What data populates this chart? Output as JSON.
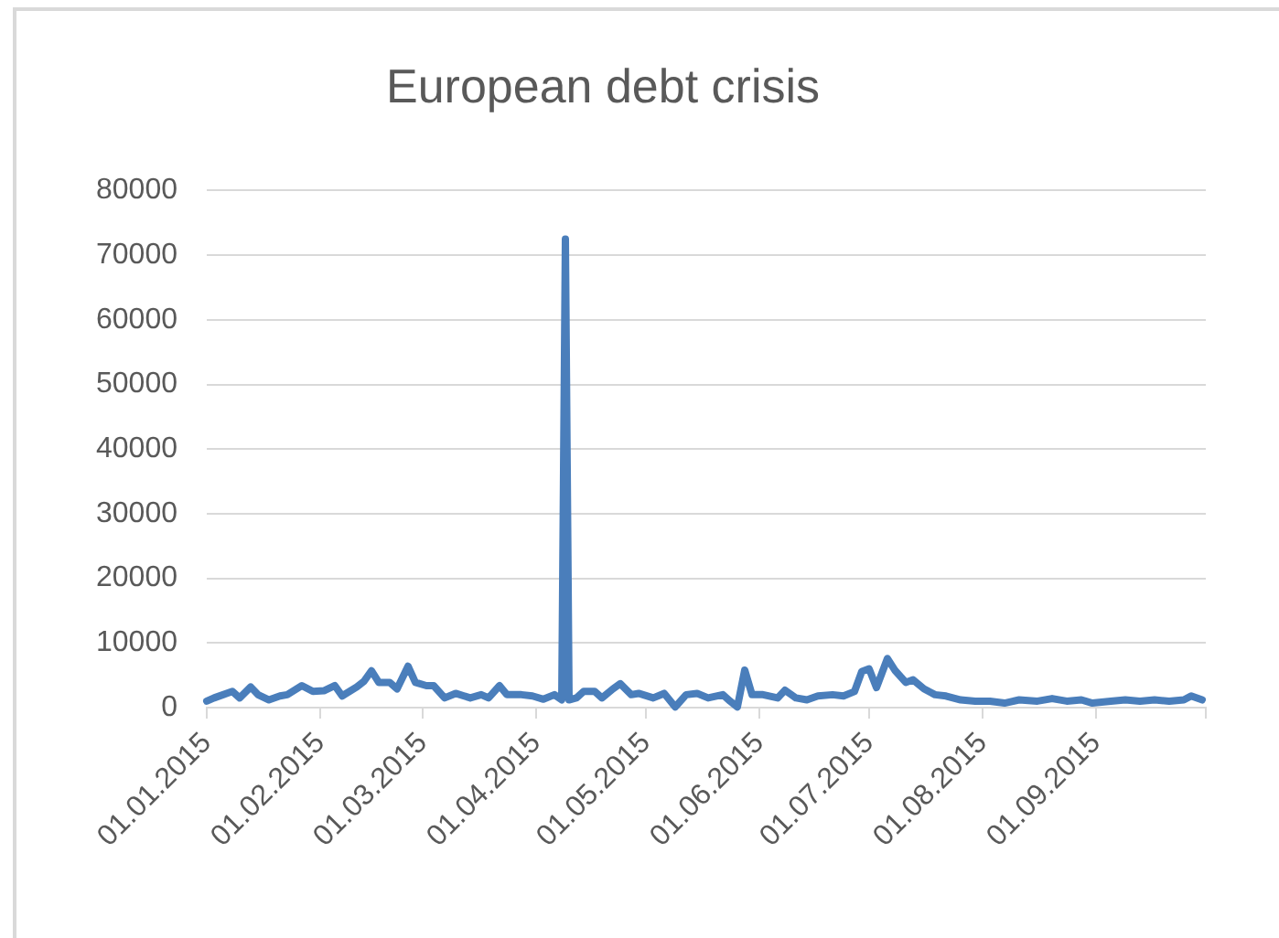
{
  "chart_data": {
    "type": "line",
    "title": "European debt crisis",
    "x": [
      "2015-01-01",
      "2015-01-03",
      "2015-01-08",
      "2015-01-10",
      "2015-01-13",
      "2015-01-15",
      "2015-01-18",
      "2015-01-21",
      "2015-01-23",
      "2015-01-27",
      "2015-01-30",
      "2015-02-02",
      "2015-02-05",
      "2015-02-07",
      "2015-02-11",
      "2015-02-13",
      "2015-02-15",
      "2015-02-17",
      "2015-02-20",
      "2015-02-22",
      "2015-02-25",
      "2015-02-27",
      "2015-03-02",
      "2015-03-04",
      "2015-03-07",
      "2015-03-10",
      "2015-03-14",
      "2015-03-17",
      "2015-03-19",
      "2015-03-22",
      "2015-03-24",
      "2015-03-28",
      "2015-03-31",
      "2015-04-03",
      "2015-04-06",
      "2015-04-08",
      "2015-04-09",
      "2015-04-10",
      "2015-04-12",
      "2015-04-14",
      "2015-04-17",
      "2015-04-19",
      "2015-04-22",
      "2015-04-24",
      "2015-04-27",
      "2015-04-29",
      "2015-05-03",
      "2015-05-06",
      "2015-05-09",
      "2015-05-12",
      "2015-05-15",
      "2015-05-18",
      "2015-05-22",
      "2015-05-24",
      "2015-05-26",
      "2015-05-28",
      "2015-05-30",
      "2015-06-02",
      "2015-06-06",
      "2015-06-08",
      "2015-06-11",
      "2015-06-14",
      "2015-06-17",
      "2015-06-21",
      "2015-06-24",
      "2015-06-27",
      "2015-06-29",
      "2015-07-01",
      "2015-07-03",
      "2015-07-06",
      "2015-07-08",
      "2015-07-11",
      "2015-07-13",
      "2015-07-16",
      "2015-07-19",
      "2015-07-22",
      "2015-07-26",
      "2015-07-30",
      "2015-08-03",
      "2015-08-07",
      "2015-08-11",
      "2015-08-16",
      "2015-08-20",
      "2015-08-24",
      "2015-08-28",
      "2015-08-31",
      "2015-09-05",
      "2015-09-09",
      "2015-09-13",
      "2015-09-17",
      "2015-09-21",
      "2015-09-25",
      "2015-09-27",
      "2015-09-30"
    ],
    "values": [
      1000,
      1500,
      2500,
      1500,
      3200,
      2000,
      1200,
      1800,
      2000,
      3400,
      2500,
      2600,
      3400,
      1800,
      3200,
      4100,
      5700,
      3900,
      3900,
      2900,
      6400,
      3900,
      3400,
      3400,
      1500,
      2200,
      1500,
      2000,
      1500,
      3400,
      2000,
      2000,
      1800,
      1300,
      2000,
      1200,
      72500,
      1200,
      1500,
      2500,
      2500,
      1500,
      2900,
      3700,
      2000,
      2200,
      1500,
      2200,
      100,
      2000,
      2200,
      1500,
      2000,
      1000,
      100,
      5800,
      2000,
      2000,
      1500,
      2700,
      1500,
      1200,
      1800,
      2000,
      1800,
      2500,
      5600,
      6000,
      3100,
      7600,
      5800,
      3900,
      4300,
      2900,
      2000,
      1800,
      1200,
      1000,
      1000,
      700,
      1200,
      1000,
      1400,
      1000,
      1200,
      700,
      1000,
      1200,
      1000,
      1200,
      1000,
      1200,
      1800,
      1200
    ],
    "color": "#4a7ebb",
    "xlim": [
      "2015-01-01",
      "2015-10-01"
    ],
    "xticks": [
      {
        "value": "2015-01-01",
        "label": "01.01.2015"
      },
      {
        "value": "2015-02-01",
        "label": "01.02.2015"
      },
      {
        "value": "2015-03-01",
        "label": "01.03.2015"
      },
      {
        "value": "2015-04-01",
        "label": "01.04.2015"
      },
      {
        "value": "2015-05-01",
        "label": "01.05.2015"
      },
      {
        "value": "2015-06-01",
        "label": "01.06.2015"
      },
      {
        "value": "2015-07-01",
        "label": "01.07.2015"
      },
      {
        "value": "2015-08-01",
        "label": "01.08.2015"
      },
      {
        "value": "2015-09-01",
        "label": "01.09.2015"
      },
      {
        "value": "2015-10-01",
        "label": null
      }
    ],
    "ylim": [
      0,
      80000
    ],
    "yticks": [
      0,
      10000,
      20000,
      30000,
      40000,
      50000,
      60000,
      70000,
      80000
    ],
    "grid": "y"
  }
}
